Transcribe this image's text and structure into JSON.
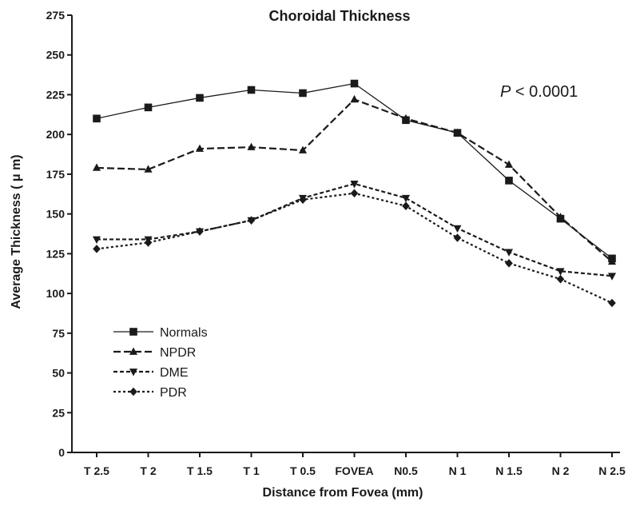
{
  "chart_data": {
    "type": "line",
    "title": "Choroidal Thickness",
    "xlabel": "Distance from Fovea (mm)",
    "ylabel": "Average Thickness ( μ m)",
    "ylim": [
      0,
      275
    ],
    "yticks": [
      0,
      25,
      50,
      75,
      100,
      125,
      150,
      175,
      200,
      225,
      250,
      275
    ],
    "categories": [
      "T 2.5",
      "T 2",
      "T 1.5",
      "T 1",
      "T 0.5",
      "FOVEA",
      "N0.5",
      "N 1",
      "N 1.5",
      "N 2",
      "N 2.5"
    ],
    "grid": false,
    "legend_position": "bottom-left",
    "annotation": {
      "italic": "P",
      "rest": " < 0.0001"
    },
    "series": [
      {
        "name": "Normals",
        "marker": "square",
        "dash": "solid",
        "values": [
          210,
          217,
          223,
          228,
          226,
          232,
          209,
          201,
          171,
          147,
          122
        ]
      },
      {
        "name": "NPDR",
        "marker": "triangle-up",
        "dash": "long",
        "values": [
          179,
          178,
          191,
          192,
          190,
          222,
          210,
          201,
          181,
          148,
          120
        ]
      },
      {
        "name": "DME",
        "marker": "triangle-down",
        "dash": "medium",
        "values": [
          134,
          134,
          139,
          146,
          160,
          169,
          160,
          141,
          126,
          114,
          111
        ]
      },
      {
        "name": "PDR",
        "marker": "diamond",
        "dash": "dotted",
        "values": [
          128,
          132,
          139,
          146,
          159,
          163,
          155,
          135,
          119,
          109,
          94
        ]
      }
    ]
  }
}
